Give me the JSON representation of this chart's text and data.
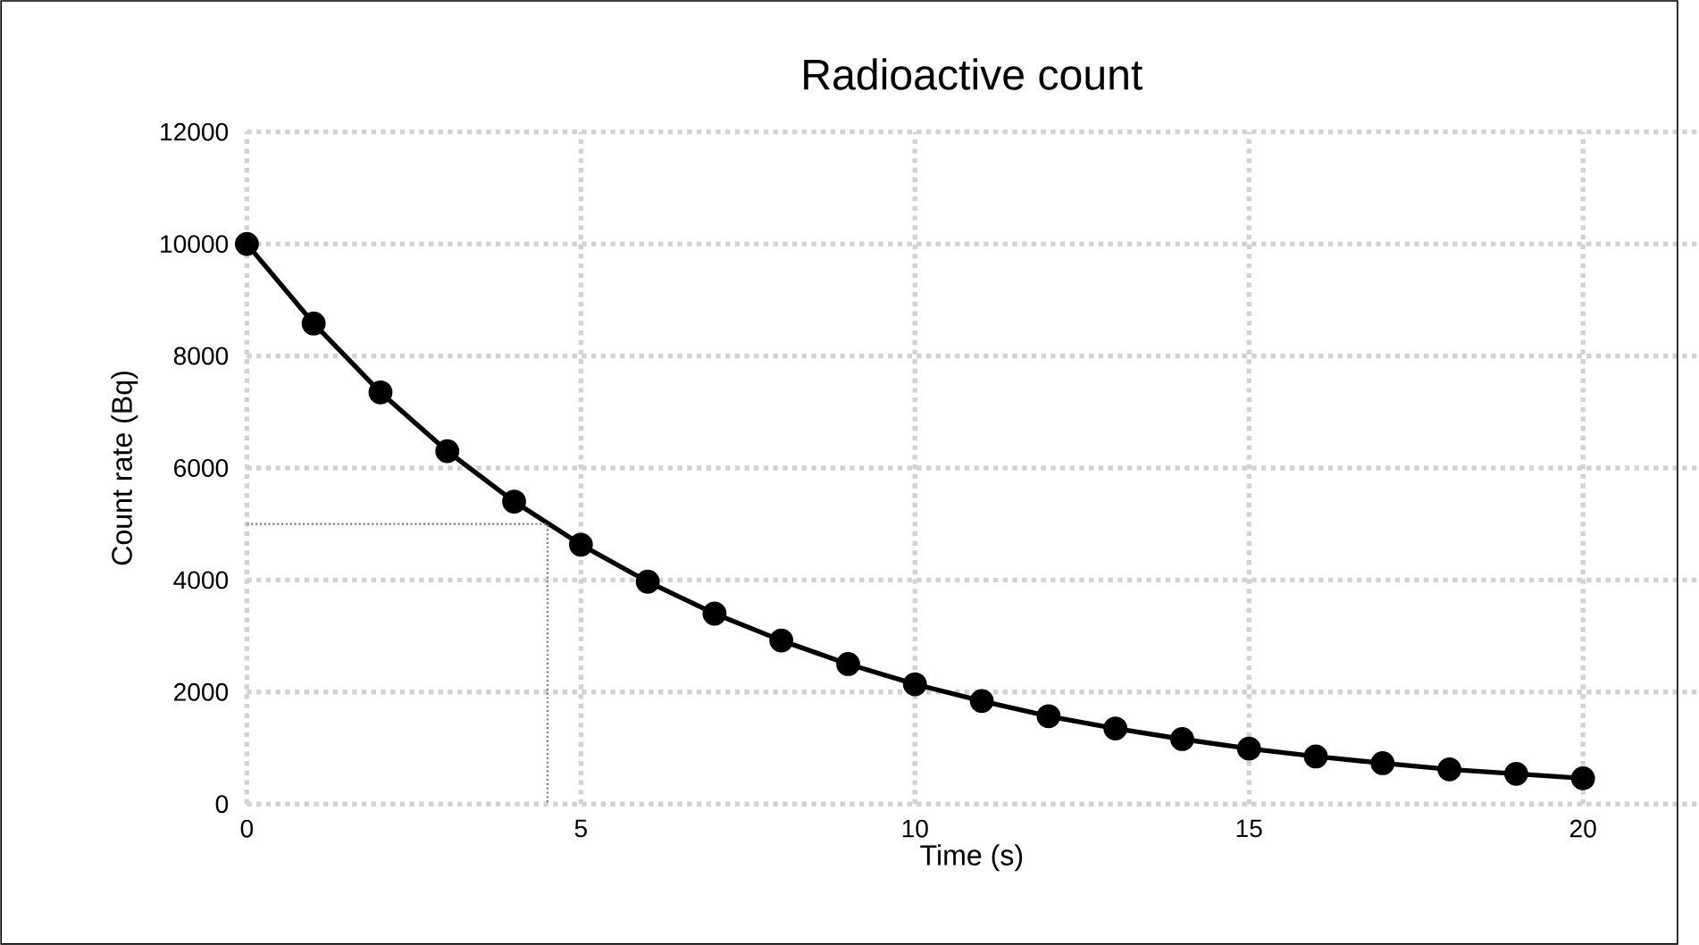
{
  "chart_data": {
    "type": "line",
    "title": "Radioactive count",
    "xlabel": "Time (s)",
    "ylabel": "Count rate (Bq)",
    "xlim": [
      0,
      21.7
    ],
    "ylim": [
      0,
      12000
    ],
    "xticks": [
      0,
      5,
      10,
      15,
      20
    ],
    "yticks": [
      0,
      2000,
      4000,
      6000,
      8000,
      10000,
      12000
    ],
    "grid": true,
    "series": [
      {
        "color": "#000000",
        "marker": "circle",
        "line_style": "solid",
        "x": [
          0,
          1,
          2,
          3,
          4,
          5,
          6,
          7,
          8,
          9,
          10,
          11,
          12,
          13,
          14,
          15,
          16,
          17,
          18,
          19,
          20
        ],
        "values": [
          10000,
          8580,
          7350,
          6300,
          5400,
          4630,
          3970,
          3400,
          2920,
          2500,
          2140,
          1840,
          1570,
          1350,
          1160,
          990,
          850,
          730,
          620,
          540,
          460
        ]
      },
      {
        "color": "#7f7f7f",
        "marker": "none",
        "line_style": "dotted",
        "x": [
          0,
          4.5,
          4.5
        ],
        "values": [
          5000,
          5000,
          0
        ]
      }
    ]
  }
}
